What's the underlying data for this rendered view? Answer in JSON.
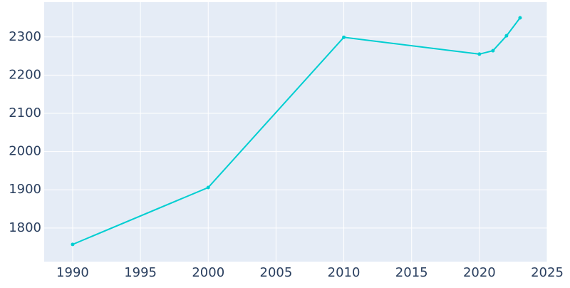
{
  "chart_data": {
    "type": "line",
    "x": [
      1990,
      2000,
      2010,
      2020,
      2021,
      2022,
      2023
    ],
    "series": [
      {
        "color": "#00ced1",
        "values": [
          1757,
          1906,
          2299,
          2255,
          2264,
          2303,
          2350
        ]
      }
    ],
    "xlim": [
      1987.9,
      2025
    ],
    "xticks": [
      1990,
      1995,
      2000,
      2005,
      2010,
      2015,
      2020,
      2025
    ],
    "ylim": [
      1712,
      2391
    ],
    "yticks": [
      1800,
      1900,
      2000,
      2100,
      2200,
      2300
    ],
    "grid": true
  }
}
